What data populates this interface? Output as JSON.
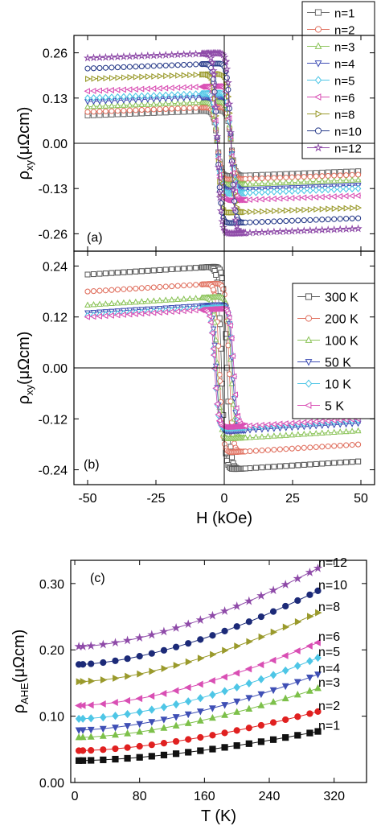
{
  "panels": {
    "a": {
      "label": "(a)",
      "ylabel_main": "ρ",
      "ylabel_sub": "xy",
      "ylabel_unit": "(μΩcm)",
      "yticks": [
        "0.26",
        "0.13",
        "0.00",
        "-0.13",
        "-0.26"
      ]
    },
    "b": {
      "label": "(b)",
      "ylabel_main": "ρ",
      "ylabel_sub": "xy",
      "ylabel_unit": "(μΩcm)",
      "yticks": [
        "0.24",
        "0.12",
        "0.00",
        "-0.12",
        "-0.24"
      ],
      "xticks": [
        "-50",
        "-25",
        "0",
        "25",
        "50"
      ],
      "xlabel": "H (kOe)"
    },
    "c": {
      "label": "(c)",
      "ylabel_main": "ρ",
      "ylabel_sub": "AHE",
      "ylabel_unit": "(μΩcm)",
      "yticks": [
        "0.00",
        "0.10",
        "0.20",
        "0.30"
      ],
      "xticks": [
        "0",
        "80",
        "160",
        "240",
        "320"
      ],
      "xlabel": "T (K)"
    }
  },
  "chart_data": [
    {
      "panel": "a",
      "type": "scatter",
      "style": "hysteresis loops, open markers with connecting lines",
      "xlabel": "H (kOe)",
      "ylabel": "ρxy(μΩcm)",
      "xlim": [
        -55,
        55
      ],
      "ylim": [
        -0.31,
        0.31
      ],
      "legend_position": "top-right",
      "series": [
        {
          "name": "n=1",
          "color": "#6e6e6e",
          "marker": "square",
          "sat_at_50": 0.08,
          "slope": 0.0003,
          "hc": 2.5
        },
        {
          "name": "n=2",
          "color": "#e0705f",
          "marker": "circle",
          "sat_at_50": 0.09,
          "slope": 0.0003,
          "hc": 2.5
        },
        {
          "name": "n=3",
          "color": "#8cc45a",
          "marker": "triangle-up",
          "sat_at_50": 0.105,
          "slope": 0.0003,
          "hc": 2.5
        },
        {
          "name": "n=4",
          "color": "#3f4fb5",
          "marker": "triangle-down",
          "sat_at_50": 0.12,
          "slope": 0.0003,
          "hc": 2.5
        },
        {
          "name": "n=5",
          "color": "#4ec6e6",
          "marker": "diamond",
          "sat_at_50": 0.13,
          "slope": 0.0003,
          "hc": 2.5
        },
        {
          "name": "n=6",
          "color": "#d94fb4",
          "marker": "triangle-left",
          "sat_at_50": 0.15,
          "slope": 0.0003,
          "hc": 2.5
        },
        {
          "name": "n=8",
          "color": "#9a9a2c",
          "marker": "triangle-right",
          "sat_at_50": 0.185,
          "slope": 0.0003,
          "hc": 2.5
        },
        {
          "name": "n=10",
          "color": "#283c8a",
          "marker": "circle",
          "sat_at_50": 0.215,
          "slope": 0.0003,
          "hc": 2.5
        },
        {
          "name": "n=12",
          "color": "#8e4aa8",
          "marker": "star",
          "sat_at_50": 0.245,
          "slope": 0.0003,
          "hc": 2.5
        }
      ]
    },
    {
      "panel": "b",
      "type": "scatter",
      "style": "hysteresis loops, open markers with connecting lines",
      "xlabel": "H (kOe)",
      "ylabel": "ρxy(μΩcm)",
      "xlim": [
        -55,
        55
      ],
      "ylim": [
        -0.275,
        0.275
      ],
      "legend_position": "right",
      "series": [
        {
          "name": "300 K",
          "color": "#5a5a5a",
          "marker": "square",
          "sat_at_50": 0.22,
          "slope": 0.0004,
          "hc": 1.0
        },
        {
          "name": "200 K",
          "color": "#e0705f",
          "marker": "circle",
          "sat_at_50": 0.18,
          "slope": 0.0004,
          "hc": 1.8
        },
        {
          "name": "100 K",
          "color": "#8cc45a",
          "marker": "triangle-up",
          "sat_at_50": 0.148,
          "slope": 0.0004,
          "hc": 2.5
        },
        {
          "name": "50 K",
          "color": "#3f4fb5",
          "marker": "triangle-down",
          "sat_at_50": 0.13,
          "slope": 0.0004,
          "hc": 3.0
        },
        {
          "name": "10 K",
          "color": "#4ec6e6",
          "marker": "diamond",
          "sat_at_50": 0.123,
          "slope": 0.0004,
          "hc": 3.5
        },
        {
          "name": "5 K",
          "color": "#d94fb4",
          "marker": "triangle-left",
          "sat_at_50": 0.12,
          "slope": 0.0004,
          "hc": 3.5
        }
      ]
    },
    {
      "panel": "c",
      "type": "line",
      "style": "filled markers with connecting lines",
      "xlabel": "T (K)",
      "ylabel": "ρAHE(μΩcm)",
      "xlim": [
        -5,
        360
      ],
      "ylim": [
        0.0,
        0.335
      ],
      "x": [
        5,
        10,
        20,
        35,
        50,
        65,
        80,
        95,
        110,
        125,
        140,
        155,
        170,
        185,
        200,
        215,
        230,
        245,
        260,
        275,
        290,
        300
      ],
      "series": [
        {
          "name": "n=12",
          "color": "#8e4aa8",
          "marker": "star",
          "y0": 0.205,
          "y300": 0.323
        },
        {
          "name": "n=10",
          "color": "#1c2a78",
          "marker": "circle",
          "y0": 0.178,
          "y300": 0.289
        },
        {
          "name": "n=8",
          "color": "#9a9a2c",
          "marker": "triangle-right",
          "y0": 0.152,
          "y300": 0.256
        },
        {
          "name": "n=6",
          "color": "#d94fb4",
          "marker": "triangle-left",
          "y0": 0.116,
          "y300": 0.211
        },
        {
          "name": "n=5",
          "color": "#4ec6e6",
          "marker": "diamond",
          "y0": 0.096,
          "y300": 0.188
        },
        {
          "name": "n=4",
          "color": "#3f4fb5",
          "marker": "triangle-down",
          "y0": 0.079,
          "y300": 0.163
        },
        {
          "name": "n=3",
          "color": "#7dc04a",
          "marker": "triangle-up",
          "y0": 0.068,
          "y300": 0.142
        },
        {
          "name": "n=2",
          "color": "#e02020",
          "marker": "circle",
          "y0": 0.048,
          "y300": 0.107
        },
        {
          "name": "n=1",
          "color": "#111111",
          "marker": "square",
          "y0": 0.033,
          "y300": 0.077
        }
      ]
    }
  ]
}
